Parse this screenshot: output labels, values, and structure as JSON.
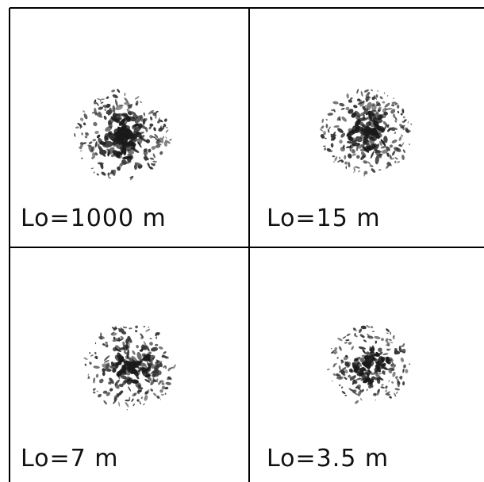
{
  "panels": [
    {
      "label": "Lo=1000 m"
    },
    {
      "label": "Lo=15 m"
    },
    {
      "label": "Lo=7 m"
    },
    {
      "label": "Lo=3.5 m"
    }
  ]
}
